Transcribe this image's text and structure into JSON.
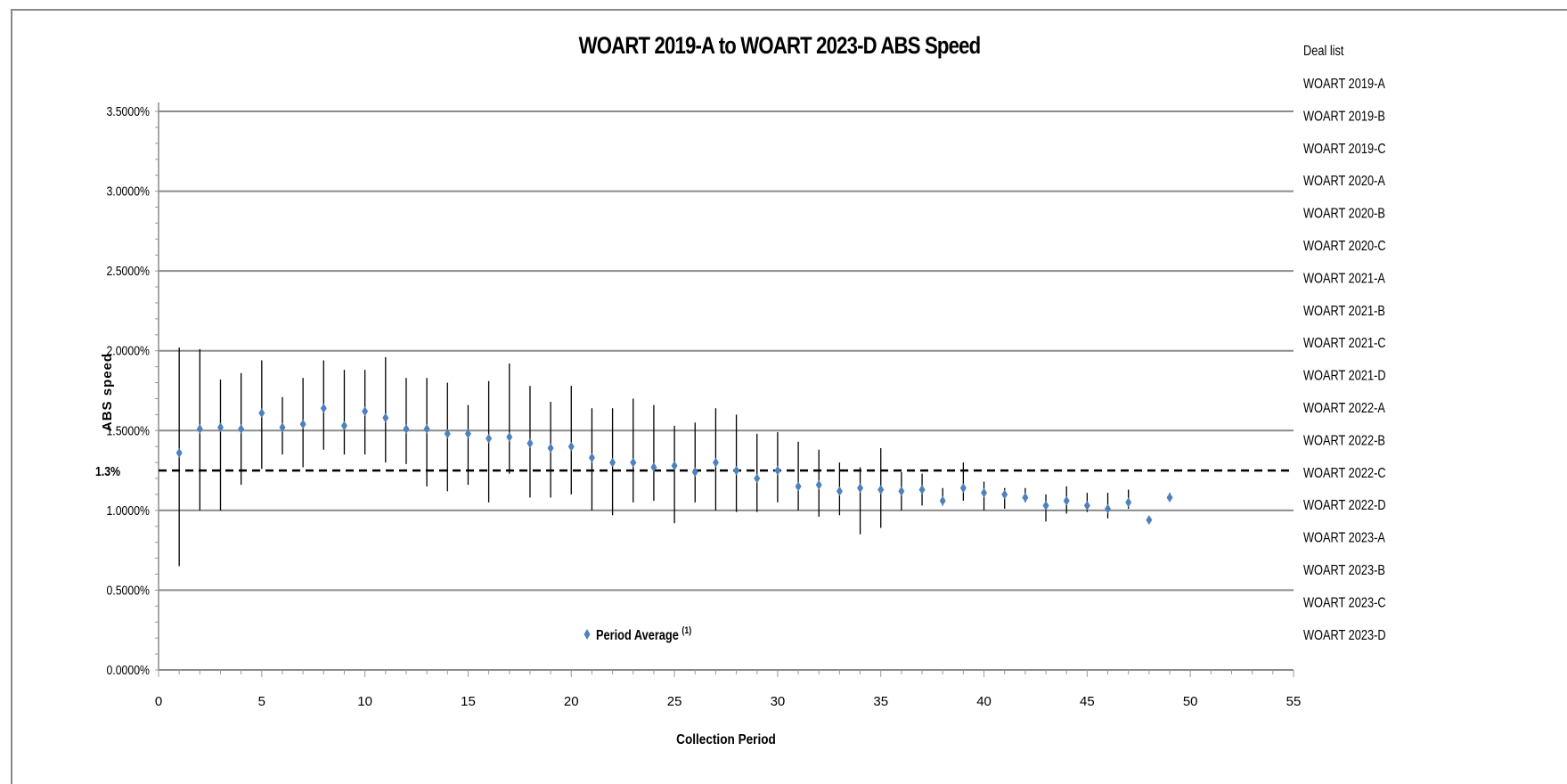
{
  "chart_data": {
    "type": "scatter",
    "title": "WOART 2019-A to WOART 2023-D ABS Speed",
    "xlabel": "Collection Period",
    "ylabel": "ABS speed",
    "xlim": [
      0,
      55
    ],
    "ylim": [
      0,
      0.035
    ],
    "x_ticks": [
      "0",
      "5",
      "10",
      "15",
      "20",
      "25",
      "30",
      "35",
      "40",
      "45",
      "50",
      "55"
    ],
    "y_ticks": [
      "0.0000%",
      "0.5000%",
      "1.0000%",
      "1.5000%",
      "2.0000%",
      "2.5000%",
      "3.0000%",
      "3.5000%"
    ],
    "grid": "horizontal major gridlines",
    "reference_line": {
      "value": 0.0125,
      "label": "1.3%",
      "style": "dashed"
    },
    "series": [
      {
        "name": "Period Average (1)",
        "color": "#4f81bd",
        "marker": "diamond",
        "x": [
          1,
          2,
          3,
          4,
          5,
          6,
          7,
          8,
          9,
          10,
          11,
          12,
          13,
          14,
          15,
          16,
          17,
          18,
          19,
          20,
          21,
          22,
          23,
          24,
          25,
          26,
          27,
          28,
          29,
          30,
          31,
          32,
          33,
          34,
          35,
          36,
          37,
          38,
          39,
          40,
          41,
          42,
          43,
          44,
          45,
          46,
          47,
          48,
          49
        ],
        "y": [
          0.0136,
          0.0151,
          0.0152,
          0.0151,
          0.0161,
          0.0152,
          0.0154,
          0.0164,
          0.0153,
          0.0162,
          0.0158,
          0.0151,
          0.0151,
          0.0148,
          0.0148,
          0.0145,
          0.0146,
          0.0142,
          0.0139,
          0.014,
          0.0133,
          0.013,
          0.013,
          0.0127,
          0.0128,
          0.0124,
          0.013,
          0.0125,
          0.012,
          0.0125,
          0.0115,
          0.0116,
          0.0112,
          0.0114,
          0.0113,
          0.0112,
          0.0113,
          0.0106,
          0.0114,
          0.0111,
          0.011,
          0.0108,
          0.0103,
          0.0106,
          0.0103,
          0.0101,
          0.0105,
          0.0094,
          0.0108
        ],
        "ymin": [
          0.0065,
          0.01,
          0.01,
          0.0116,
          0.0126,
          0.0135,
          0.0127,
          0.0138,
          0.0135,
          0.0135,
          0.013,
          0.0129,
          0.0115,
          0.0112,
          0.0116,
          0.0105,
          0.0123,
          0.0108,
          0.0108,
          0.011,
          0.01,
          0.0097,
          0.0105,
          0.0106,
          0.0092,
          0.0105,
          0.01,
          0.0099,
          0.0099,
          0.0105,
          0.01,
          0.0096,
          0.0097,
          0.0085,
          0.0089,
          0.01,
          0.0103,
          0.0103,
          0.0106,
          0.01,
          0.0101,
          0.0105,
          0.0093,
          0.0098,
          0.0099,
          0.0095,
          0.0101,
          0.0092,
          0.0106
        ],
        "ymax": [
          0.0202,
          0.0201,
          0.0182,
          0.0186,
          0.0194,
          0.0171,
          0.0183,
          0.0194,
          0.0188,
          0.0188,
          0.0196,
          0.0183,
          0.0183,
          0.018,
          0.0166,
          0.0181,
          0.0192,
          0.0178,
          0.0168,
          0.0178,
          0.0164,
          0.0164,
          0.017,
          0.0166,
          0.0153,
          0.0155,
          0.0164,
          0.016,
          0.0148,
          0.0149,
          0.0143,
          0.0138,
          0.013,
          0.0127,
          0.0139,
          0.0124,
          0.0123,
          0.0114,
          0.013,
          0.0118,
          0.0114,
          0.0114,
          0.011,
          0.0115,
          0.0111,
          0.0111,
          0.0113,
          0.0096,
          0.0111
        ]
      }
    ],
    "legend": {
      "position": "bottom-center inside plot",
      "entry": "Period Average",
      "superscript": "(1)"
    },
    "deal_list": {
      "title": "Deal list",
      "items": [
        "WOART 2019-A",
        "WOART 2019-B",
        "WOART 2019-C",
        "WOART 2020-A",
        "WOART 2020-B",
        "WOART 2020-C",
        "WOART 2021-A",
        "WOART 2021-B",
        "WOART 2021-C",
        "WOART 2021-D",
        "WOART 2022-A",
        "WOART 2022-B",
        "WOART 2022-C",
        "WOART 2022-D",
        "WOART 2023-A",
        "WOART 2023-B",
        "WOART 2023-C",
        "WOART 2023-D"
      ]
    }
  }
}
